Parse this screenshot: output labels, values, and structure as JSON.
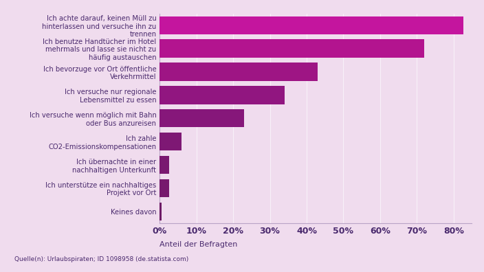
{
  "chart_data": {
    "type": "bar",
    "orientation": "horizontal",
    "categories": [
      "Ich achte darauf, keinen Müll zu hinterlassen und versuche ihn zu trennen",
      "Ich benutze Handtücher im Hotel mehrmals und lasse sie nicht zu häufig austauschen",
      "Ich bevorzuge vor Ort öffentliche Verkehrmittel",
      "Ich versuche nur regionale Lebensmittel zu essen",
      "Ich versuche wenn möglich mit Bahn oder Bus anzureisen",
      "Ich zahle CO2-Emissionskompensationen",
      "Ich übernachte in einer nachhaltigen Unterkunft",
      "Ich unterstütze ein nachhaltiges Projekt vor Ort",
      "Keines davon"
    ],
    "values": [
      82.6,
      72,
      43,
      34,
      23,
      6,
      2.6,
      2.6,
      0.5
    ],
    "colors": [
      "#c4159e",
      "#b3148f",
      "#9e1584",
      "#911680",
      "#86177a",
      "#7e1874",
      "#7a1870",
      "#77196d",
      "#6e1a66"
    ],
    "x_label": "Anteil der Befragten",
    "source": "Quelle(n): Urlaubspiraten; ID 1098958 (de.statista.com)",
    "xlim": [
      0,
      85
    ],
    "xticks": [
      {
        "value": 0,
        "label": "0%"
      },
      {
        "value": 10,
        "label": "10%"
      },
      {
        "value": 20,
        "label": "20%"
      },
      {
        "value": 30,
        "label": "30%"
      },
      {
        "value": 40,
        "label": "40%"
      },
      {
        "value": 50,
        "label": "50%"
      },
      {
        "value": 60,
        "label": "60%"
      },
      {
        "value": 70,
        "label": "70%"
      },
      {
        "value": 80,
        "label": "80%"
      }
    ],
    "grid": true
  }
}
